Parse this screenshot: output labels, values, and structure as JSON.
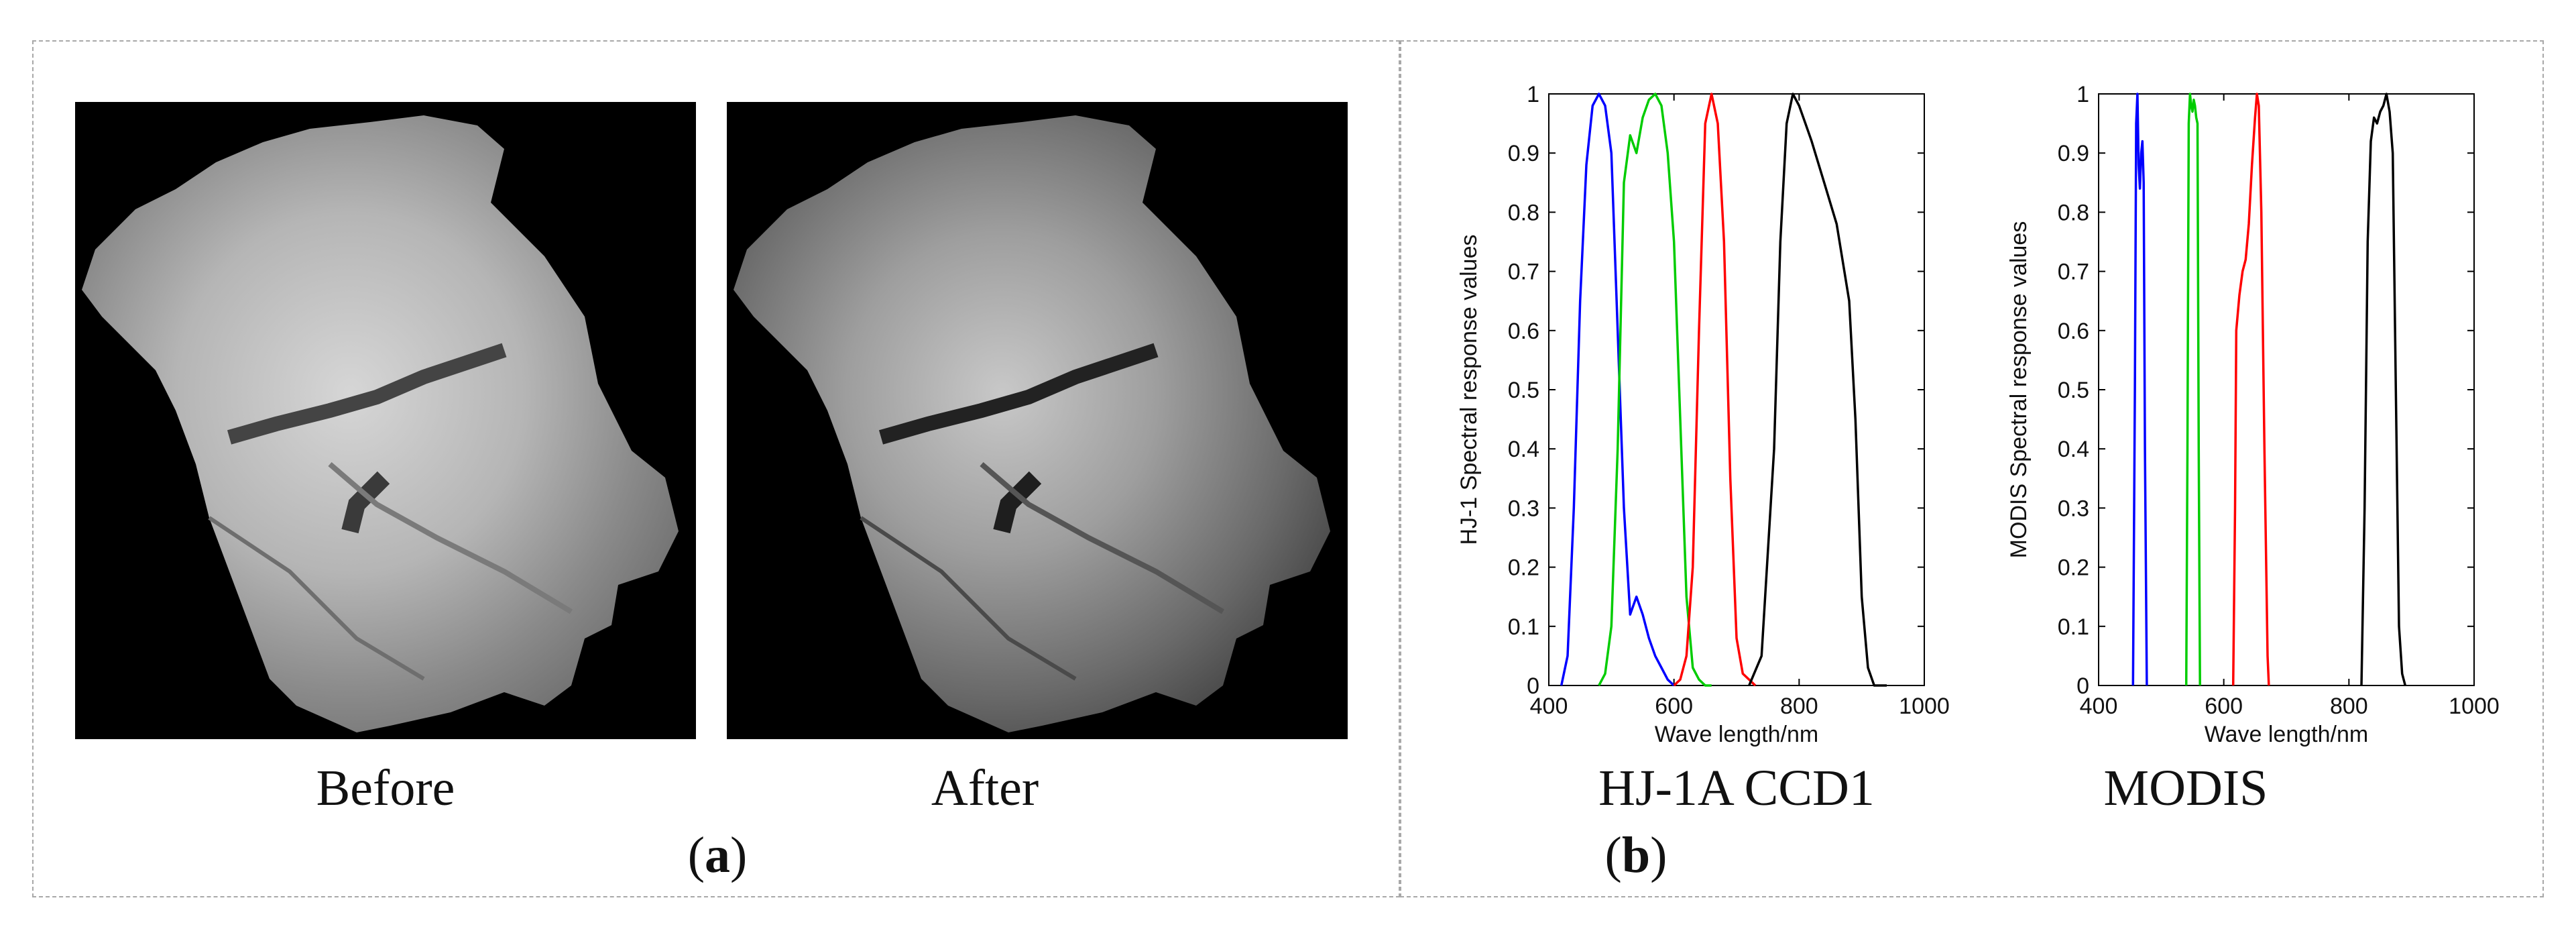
{
  "panel_a": {
    "label": "a",
    "images": [
      {
        "caption": "Before"
      },
      {
        "caption": "After"
      }
    ]
  },
  "panel_b": {
    "label": "b",
    "captions": [
      "HJ-1A CCD1",
      "MODIS"
    ]
  },
  "chart_data": [
    {
      "type": "line",
      "caption": "HJ-1A CCD1",
      "xlabel": "Wave length/nm",
      "ylabel": "HJ-1 Spectral response values",
      "xlim": [
        400,
        1000
      ],
      "ylim": [
        0,
        1
      ],
      "xticks": [
        400,
        600,
        800,
        1000
      ],
      "yticks": [
        0,
        0.1,
        0.2,
        0.3,
        0.4,
        0.5,
        0.6,
        0.7,
        0.8,
        0.9,
        1
      ],
      "grid": false,
      "series": [
        {
          "color": "#0000ff",
          "x": [
            420,
            430,
            440,
            450,
            460,
            470,
            480,
            490,
            500,
            510,
            520,
            530,
            540,
            550,
            560,
            570,
            580,
            590,
            600
          ],
          "y": [
            0,
            0.05,
            0.3,
            0.65,
            0.88,
            0.98,
            1.0,
            0.98,
            0.9,
            0.6,
            0.3,
            0.12,
            0.15,
            0.12,
            0.08,
            0.05,
            0.03,
            0.01,
            0
          ]
        },
        {
          "color": "#00cc00",
          "x": [
            480,
            490,
            500,
            510,
            520,
            530,
            540,
            550,
            560,
            570,
            580,
            590,
            600,
            610,
            620,
            630,
            640,
            650,
            660
          ],
          "y": [
            0,
            0.02,
            0.1,
            0.4,
            0.85,
            0.93,
            0.9,
            0.96,
            0.99,
            1.0,
            0.98,
            0.9,
            0.75,
            0.45,
            0.15,
            0.03,
            0.01,
            0,
            0
          ]
        },
        {
          "color": "#ff0000",
          "x": [
            600,
            610,
            620,
            630,
            640,
            650,
            660,
            670,
            680,
            690,
            700,
            710,
            720,
            730
          ],
          "y": [
            0,
            0.01,
            0.05,
            0.2,
            0.6,
            0.95,
            1.0,
            0.95,
            0.75,
            0.35,
            0.08,
            0.02,
            0.01,
            0
          ]
        },
        {
          "color": "#000000",
          "x": [
            720,
            740,
            760,
            770,
            780,
            790,
            800,
            810,
            820,
            840,
            860,
            880,
            890,
            900,
            910,
            920,
            940
          ],
          "y": [
            0,
            0.05,
            0.4,
            0.75,
            0.95,
            1.0,
            0.98,
            0.95,
            0.92,
            0.85,
            0.78,
            0.65,
            0.45,
            0.15,
            0.03,
            0,
            0
          ]
        }
      ]
    },
    {
      "type": "line",
      "caption": "MODIS",
      "xlabel": "Wave length/nm",
      "ylabel": "MODIS Spectral response values",
      "xlim": [
        400,
        1000
      ],
      "ylim": [
        0,
        1
      ],
      "xticks": [
        400,
        600,
        800,
        1000
      ],
      "yticks": [
        0,
        0.1,
        0.2,
        0.3,
        0.4,
        0.5,
        0.6,
        0.7,
        0.8,
        0.9,
        1
      ],
      "grid": false,
      "series": [
        {
          "color": "#0000ff",
          "x": [
            455,
            458,
            460,
            462,
            464,
            466,
            468,
            470,
            472,
            474,
            477
          ],
          "y": [
            0,
            0.5,
            0.95,
            1.0,
            0.88,
            0.84,
            0.9,
            0.92,
            0.85,
            0.4,
            0
          ]
        },
        {
          "color": "#00cc00",
          "x": [
            540,
            542,
            544,
            546,
            548,
            550,
            552,
            554,
            556,
            558,
            560,
            562
          ],
          "y": [
            0,
            0.4,
            0.95,
            1.0,
            0.98,
            0.97,
            0.99,
            0.98,
            0.96,
            0.95,
            0.4,
            0
          ]
        },
        {
          "color": "#ff0000",
          "x": [
            615,
            618,
            620,
            625,
            630,
            635,
            640,
            645,
            650,
            653,
            656,
            660,
            665,
            670,
            672
          ],
          "y": [
            0,
            0.3,
            0.6,
            0.66,
            0.7,
            0.72,
            0.78,
            0.88,
            0.96,
            1.0,
            0.98,
            0.8,
            0.4,
            0.05,
            0
          ]
        },
        {
          "color": "#000000",
          "x": [
            820,
            825,
            830,
            835,
            840,
            845,
            850,
            855,
            860,
            865,
            870,
            875,
            880,
            885,
            890
          ],
          "y": [
            0,
            0.3,
            0.75,
            0.92,
            0.96,
            0.95,
            0.97,
            0.98,
            1.0,
            0.97,
            0.9,
            0.5,
            0.1,
            0.02,
            0
          ]
        }
      ]
    }
  ]
}
